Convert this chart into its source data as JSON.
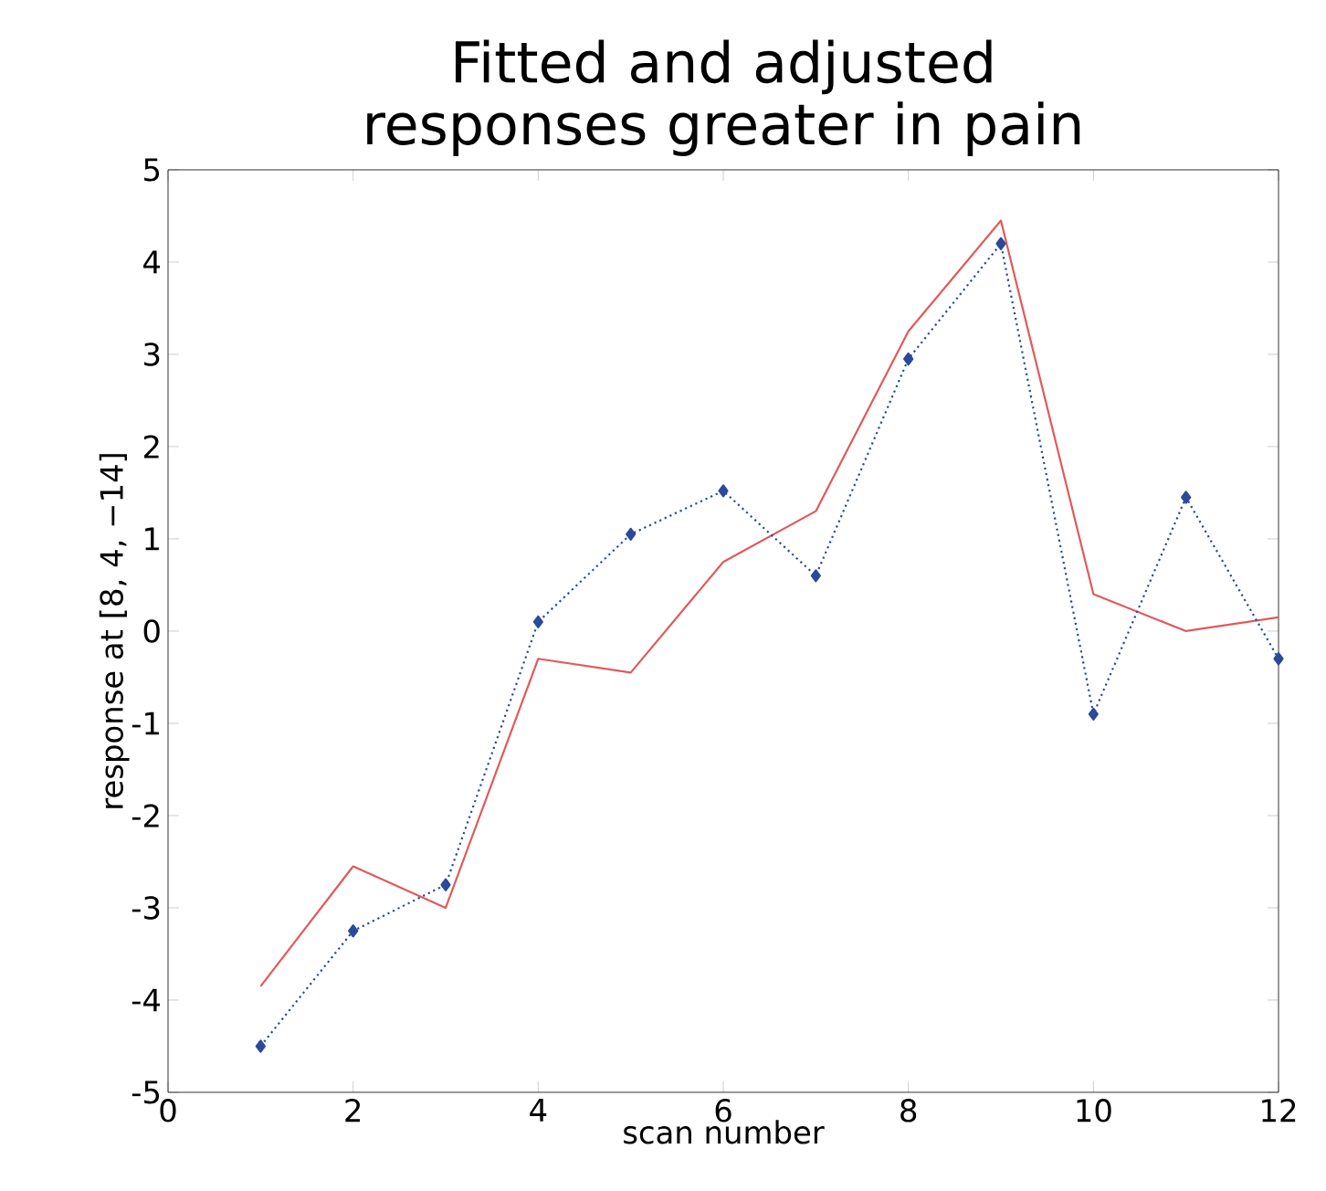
{
  "chart_data": {
    "type": "line",
    "title": "Fitted and adjusted responses greater in pain",
    "xlabel": "scan number",
    "ylabel": "response at [8, 4, −14]",
    "x": [
      1,
      2,
      3,
      4,
      5,
      6,
      7,
      8,
      9,
      10,
      11,
      12
    ],
    "xlim": [
      0,
      12
    ],
    "ylim": [
      -5,
      5
    ],
    "xticks": [
      0,
      2,
      4,
      6,
      8,
      10,
      12
    ],
    "yticks": [
      -5,
      -4,
      -3,
      -2,
      -1,
      0,
      1,
      2,
      3,
      4,
      5
    ],
    "grid": false,
    "series": [
      {
        "color": "#e05a5a",
        "marker": "none",
        "line_style": "solid",
        "values": [
          -3.85,
          -2.55,
          -3.0,
          -0.3,
          -0.45,
          0.75,
          1.3,
          3.25,
          4.45,
          0.4,
          0.0,
          0.15
        ]
      },
      {
        "color": "#2a4a9a",
        "marker": "diamond",
        "line_style": "dotted",
        "values": [
          -4.5,
          -3.25,
          -2.75,
          0.1,
          1.05,
          1.52,
          0.6,
          2.95,
          4.2,
          -0.9,
          1.45,
          -0.3
        ]
      }
    ]
  }
}
